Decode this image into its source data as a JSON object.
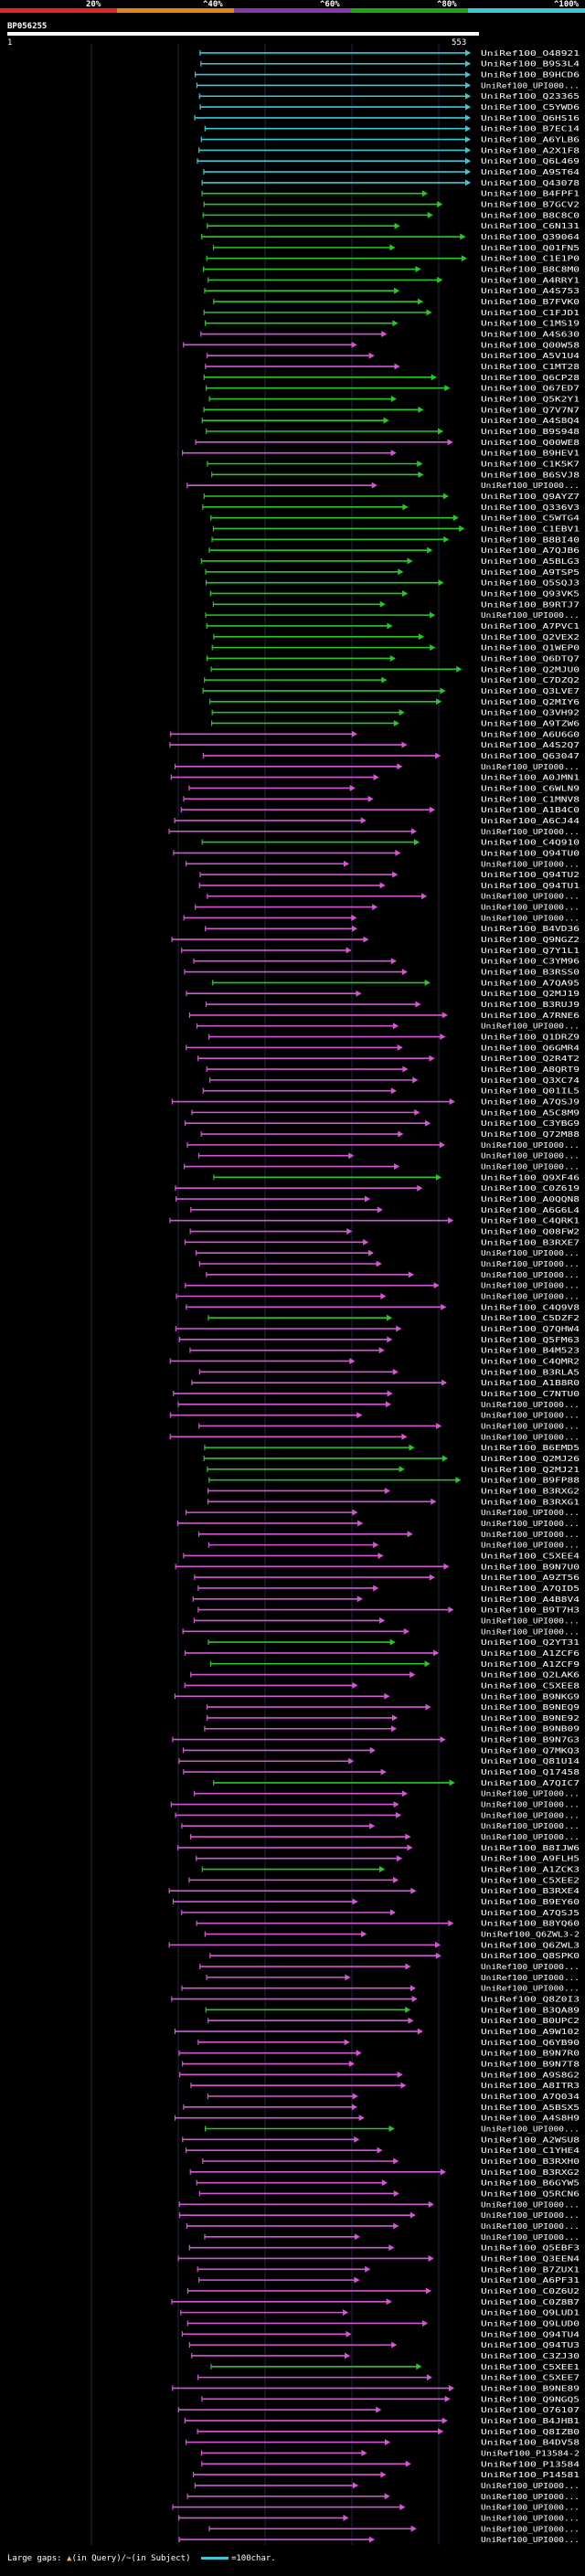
{
  "query": {
    "id": "BP056255",
    "start": "1",
    "end": "553"
  },
  "identity_scale": [
    {
      "label": "20%",
      "color": "#e8202a"
    },
    {
      "label": "^40%",
      "color": "#e8821e"
    },
    {
      "label": "^60%",
      "color": "#8a3aa8"
    },
    {
      "label": "^80%",
      "color": "#18a818"
    },
    {
      "label": "^100%",
      "color": "#3ec8d6"
    }
  ],
  "palette": {
    "cyan": "#3ec8d6",
    "green": "#28c828",
    "magenta": "#d457d4"
  },
  "hits": [
    {
      "id": "UniRef100_O48921",
      "c": "cyan"
    },
    {
      "id": "UniRef100_B9S3L4",
      "c": "cyan"
    },
    {
      "id": "UniRef100_B9HCD6",
      "c": "cyan"
    },
    {
      "id": "UniRef100_UPI000...",
      "c": "cyan"
    },
    {
      "id": "UniRef100_Q23365",
      "c": "cyan"
    },
    {
      "id": "UniRef100_C5YWD6",
      "c": "cyan"
    },
    {
      "id": "UniRef100_Q6HS16",
      "c": "cyan"
    },
    {
      "id": "UniRef100_B7EC14",
      "c": "cyan"
    },
    {
      "id": "UniRef100_A6YLB6",
      "c": "cyan"
    },
    {
      "id": "UniRef100_A2X1F8",
      "c": "cyan"
    },
    {
      "id": "UniRef100_Q6L469",
      "c": "cyan"
    },
    {
      "id": "UniRef100_A9ST64",
      "c": "cyan"
    },
    {
      "id": "UniRef100_Q43078",
      "c": "cyan"
    },
    {
      "id": "UniRef100_B4FPF1",
      "c": "green"
    },
    {
      "id": "UniRef100_B7GCV2",
      "c": "green"
    },
    {
      "id": "UniRef100_B8C8C0",
      "c": "green"
    },
    {
      "id": "UniRef100_C6N131",
      "c": "green"
    },
    {
      "id": "UniRef100_Q39064",
      "c": "green"
    },
    {
      "id": "UniRef100_Q01FN5",
      "c": "green"
    },
    {
      "id": "UniRef100_C1E1P0",
      "c": "green"
    },
    {
      "id": "UniRef100_B8C8M0",
      "c": "green"
    },
    {
      "id": "UniRef100_A4RRY1",
      "c": "green"
    },
    {
      "id": "UniRef100_A4S753",
      "c": "green"
    },
    {
      "id": "UniRef100_B7FVK0",
      "c": "green"
    },
    {
      "id": "UniRef100_C1FJD1",
      "c": "green"
    },
    {
      "id": "UniRef100_C1MS19",
      "c": "green"
    },
    {
      "id": "UniRef100_A4S630",
      "c": "magenta"
    },
    {
      "id": "UniRef100_Q00W58",
      "c": "magenta"
    },
    {
      "id": "UniRef100_A5V1U4",
      "c": "magenta"
    },
    {
      "id": "UniRef100_C1MT28",
      "c": "magenta"
    },
    {
      "id": "UniRef100_Q6CP28",
      "c": "green"
    },
    {
      "id": "UniRef100_Q67ED7",
      "c": "green"
    },
    {
      "id": "UniRef100_Q5K2Y1",
      "c": "green"
    },
    {
      "id": "UniRef100_Q7V7N7",
      "c": "green"
    },
    {
      "id": "UniRef100_A4S8Q4",
      "c": "green"
    },
    {
      "id": "UniRef100_B9S948",
      "c": "green"
    },
    {
      "id": "UniRef100_Q00WE8",
      "c": "magenta"
    },
    {
      "id": "UniRef100_B9HEV1",
      "c": "magenta"
    },
    {
      "id": "UniRef100_C1K5K7",
      "c": "green"
    },
    {
      "id": "UniRef100_B6SVJ8",
      "c": "green"
    },
    {
      "id": "UniRef100_UPI000...",
      "c": "magenta"
    },
    {
      "id": "UniRef100_Q9AYZ7",
      "c": "green"
    },
    {
      "id": "UniRef100_Q336V3",
      "c": "green"
    },
    {
      "id": "UniRef100_C5WTG4",
      "c": "green"
    },
    {
      "id": "UniRef100_C1EBV1",
      "c": "green"
    },
    {
      "id": "UniRef100_B8BI40",
      "c": "green"
    },
    {
      "id": "UniRef100_A7QJB6",
      "c": "green"
    },
    {
      "id": "UniRef100_A5BLG3",
      "c": "green"
    },
    {
      "id": "UniRef100_A9TSP5",
      "c": "green"
    },
    {
      "id": "UniRef100_Q5SQJ3",
      "c": "green"
    },
    {
      "id": "UniRef100_Q93VK5",
      "c": "green"
    },
    {
      "id": "UniRef100_B9RTJ7",
      "c": "green"
    },
    {
      "id": "UniRef100_UPI000...",
      "c": "green"
    },
    {
      "id": "UniRef100_A7PVC1",
      "c": "green"
    },
    {
      "id": "UniRef100_Q2VEX2",
      "c": "green"
    },
    {
      "id": "UniRef100_Q1WEP0",
      "c": "green"
    },
    {
      "id": "UniRef100_Q6DTQ7",
      "c": "green"
    },
    {
      "id": "UniRef100_Q2MJU0",
      "c": "green"
    },
    {
      "id": "UniRef100_C7DZQ2",
      "c": "green"
    },
    {
      "id": "UniRef100_Q3LVE7",
      "c": "green"
    },
    {
      "id": "UniRef100_Q2MIY6",
      "c": "green"
    },
    {
      "id": "UniRef100_Q3VH92",
      "c": "green"
    },
    {
      "id": "UniRef100_A9TZW6",
      "c": "green"
    },
    {
      "id": "UniRef100_A6U6G0",
      "c": "magenta"
    },
    {
      "id": "UniRef100_A4S2Q7",
      "c": "magenta"
    },
    {
      "id": "UniRef100_Q63047",
      "c": "magenta"
    },
    {
      "id": "UniRef100_UPI000...",
      "c": "magenta"
    },
    {
      "id": "UniRef100_A0JMN1",
      "c": "magenta"
    },
    {
      "id": "UniRef100_C6WLN9",
      "c": "magenta"
    },
    {
      "id": "UniRef100_C1MNV8",
      "c": "magenta"
    },
    {
      "id": "UniRef100_A1B4C0",
      "c": "magenta"
    },
    {
      "id": "UniRef100_A6CJ44",
      "c": "magenta"
    },
    {
      "id": "UniRef100_UPI000...",
      "c": "magenta"
    },
    {
      "id": "UniRef100_C4Q910",
      "c": "green"
    },
    {
      "id": "UniRef100_Q94TU0",
      "c": "magenta"
    },
    {
      "id": "UniRef100_UPI000...",
      "c": "magenta"
    },
    {
      "id": "UniRef100_Q94TU2",
      "c": "magenta"
    },
    {
      "id": "UniRef100_Q94TU1",
      "c": "magenta"
    },
    {
      "id": "UniRef100_UPI000...",
      "c": "magenta"
    },
    {
      "id": "UniRef100_UPI000...",
      "c": "magenta"
    },
    {
      "id": "UniRef100_UPI000...",
      "c": "magenta"
    },
    {
      "id": "UniRef100_B4VD36",
      "c": "magenta"
    },
    {
      "id": "UniRef100_Q9NGZ2",
      "c": "magenta"
    },
    {
      "id": "UniRef100_Q7Y1L1",
      "c": "magenta"
    },
    {
      "id": "UniRef100_C3YM96",
      "c": "magenta"
    },
    {
      "id": "UniRef100_B3RSS0",
      "c": "magenta"
    },
    {
      "id": "UniRef100_A7QA95",
      "c": "green"
    },
    {
      "id": "UniRef100_Q2MJ19",
      "c": "magenta"
    },
    {
      "id": "UniRef100_B3RUJ9",
      "c": "magenta"
    },
    {
      "id": "UniRef100_A7RNE6",
      "c": "magenta"
    },
    {
      "id": "UniRef100_UPI000...",
      "c": "magenta"
    },
    {
      "id": "UniRef100_Q1DRZ9",
      "c": "magenta"
    },
    {
      "id": "UniRef100_Q6GMR4",
      "c": "magenta"
    },
    {
      "id": "UniRef100_Q2R4T2",
      "c": "magenta"
    },
    {
      "id": "UniRef100_A8QRT9",
      "c": "magenta"
    },
    {
      "id": "UniRef100_Q3XC74",
      "c": "magenta"
    },
    {
      "id": "UniRef100_Q01IL5",
      "c": "magenta"
    },
    {
      "id": "UniRef100_A7QSJ9",
      "c": "magenta"
    },
    {
      "id": "UniRef100_A5C8M9",
      "c": "magenta"
    },
    {
      "id": "UniRef100_C3YBG9",
      "c": "magenta"
    },
    {
      "id": "UniRef100_Q72M88",
      "c": "magenta"
    },
    {
      "id": "UniRef100_UPI000...",
      "c": "magenta"
    },
    {
      "id": "UniRef100_UPI000...",
      "c": "magenta"
    },
    {
      "id": "UniRef100_UPI000...",
      "c": "magenta"
    },
    {
      "id": "UniRef100_Q9XF46",
      "c": "green"
    },
    {
      "id": "UniRef100_C0Z619",
      "c": "magenta"
    },
    {
      "id": "UniRef100_A0QQN8",
      "c": "magenta"
    },
    {
      "id": "UniRef100_A6G6L4",
      "c": "magenta"
    },
    {
      "id": "UniRef100_C4QRK1",
      "c": "magenta"
    },
    {
      "id": "UniRef100_Q08FW2",
      "c": "magenta"
    },
    {
      "id": "UniRef100_B3RXE7",
      "c": "magenta"
    },
    {
      "id": "UniRef100_UPI000...",
      "c": "magenta"
    },
    {
      "id": "UniRef100_UPI000...",
      "c": "magenta"
    },
    {
      "id": "UniRef100_UPI000...",
      "c": "magenta"
    },
    {
      "id": "UniRef100_UPI000...",
      "c": "magenta"
    },
    {
      "id": "UniRef100_UPI000...",
      "c": "magenta"
    },
    {
      "id": "UniRef100_C4Q9V8",
      "c": "magenta"
    },
    {
      "id": "UniRef100_C5DZF2",
      "c": "green"
    },
    {
      "id": "UniRef100_Q7QHW4",
      "c": "magenta"
    },
    {
      "id": "UniRef100_Q5FM63",
      "c": "magenta"
    },
    {
      "id": "UniRef100_B4M523",
      "c": "magenta"
    },
    {
      "id": "UniRef100_C4QMR2",
      "c": "magenta"
    },
    {
      "id": "UniRef100_B3RLA5",
      "c": "magenta"
    },
    {
      "id": "UniRef100_A1B8R0",
      "c": "magenta"
    },
    {
      "id": "UniRef100_C7NTU0",
      "c": "magenta"
    },
    {
      "id": "UniRef100_UPI000...",
      "c": "magenta"
    },
    {
      "id": "UniRef100_UPI000...",
      "c": "magenta"
    },
    {
      "id": "UniRef100_UPI000...",
      "c": "magenta"
    },
    {
      "id": "UniRef100_UPI000...",
      "c": "magenta"
    },
    {
      "id": "UniRef100_B6EMD5",
      "c": "green"
    },
    {
      "id": "UniRef100_Q2MJ26",
      "c": "green"
    },
    {
      "id": "UniRef100_Q2MJ21",
      "c": "green"
    },
    {
      "id": "UniRef100_B9FP88",
      "c": "green"
    },
    {
      "id": "UniRef100_B3RXG2",
      "c": "magenta"
    },
    {
      "id": "UniRef100_B3RXG1",
      "c": "magenta"
    },
    {
      "id": "UniRef100_UPI000...",
      "c": "magenta"
    },
    {
      "id": "UniRef100_UPI000...",
      "c": "magenta"
    },
    {
      "id": "UniRef100_UPI000...",
      "c": "magenta"
    },
    {
      "id": "UniRef100_UPI000...",
      "c": "magenta"
    },
    {
      "id": "UniRef100_C5XEE4",
      "c": "magenta"
    },
    {
      "id": "UniRef100_B9N7U0",
      "c": "magenta"
    },
    {
      "id": "UniRef100_A9ZT56",
      "c": "magenta"
    },
    {
      "id": "UniRef100_A7QID5",
      "c": "magenta"
    },
    {
      "id": "UniRef100_A4B8V4",
      "c": "magenta"
    },
    {
      "id": "UniRef100_B9T7H3",
      "c": "magenta"
    },
    {
      "id": "UniRef100_UPI000...",
      "c": "magenta"
    },
    {
      "id": "UniRef100_UPI000...",
      "c": "magenta"
    },
    {
      "id": "UniRef100_Q2YT31",
      "c": "green"
    },
    {
      "id": "UniRef100_A1ZCF6",
      "c": "magenta"
    },
    {
      "id": "UniRef100_A1ZCF9",
      "c": "green"
    },
    {
      "id": "UniRef100_Q2LAK6",
      "c": "magenta"
    },
    {
      "id": "UniRef100_C5XEE8",
      "c": "magenta"
    },
    {
      "id": "UniRef100_B9NKG9",
      "c": "magenta"
    },
    {
      "id": "UniRef100_B9NEQ9",
      "c": "magenta"
    },
    {
      "id": "UniRef100_B9NE92",
      "c": "magenta"
    },
    {
      "id": "UniRef100_B9NB09",
      "c": "magenta"
    },
    {
      "id": "UniRef100_B9N7G3",
      "c": "magenta"
    },
    {
      "id": "UniRef100_Q7MKQ3",
      "c": "magenta"
    },
    {
      "id": "UniRef100_Q81U14",
      "c": "magenta"
    },
    {
      "id": "UniRef100_Q17458",
      "c": "magenta"
    },
    {
      "id": "UniRef100_A7QIC7",
      "c": "green"
    },
    {
      "id": "UniRef100_UPI000...",
      "c": "magenta"
    },
    {
      "id": "UniRef100_UPI000...",
      "c": "magenta"
    },
    {
      "id": "UniRef100_UPI000...",
      "c": "magenta"
    },
    {
      "id": "UniRef100_UPI000...",
      "c": "magenta"
    },
    {
      "id": "UniRef100_UPI000...",
      "c": "magenta"
    },
    {
      "id": "UniRef100_B8IJW6",
      "c": "magenta"
    },
    {
      "id": "UniRef100_A9FLH5",
      "c": "magenta"
    },
    {
      "id": "UniRef100_A1ZCK3",
      "c": "green"
    },
    {
      "id": "UniRef100_C5XEE2",
      "c": "magenta"
    },
    {
      "id": "UniRef100_B3RXE4",
      "c": "magenta"
    },
    {
      "id": "UniRef100_B9EY60",
      "c": "magenta"
    },
    {
      "id": "UniRef100_A7QSJ5",
      "c": "magenta"
    },
    {
      "id": "UniRef100_B8YQ60",
      "c": "magenta"
    },
    {
      "id": "UniRef100_Q6ZWL3-2",
      "c": "magenta"
    },
    {
      "id": "UniRef100_Q6ZWL3",
      "c": "magenta"
    },
    {
      "id": "UniRef100_Q8SPK0",
      "c": "magenta"
    },
    {
      "id": "UniRef100_UPI000...",
      "c": "magenta"
    },
    {
      "id": "UniRef100_UPI000...",
      "c": "magenta"
    },
    {
      "id": "UniRef100_UPI000...",
      "c": "magenta"
    },
    {
      "id": "UniRef100_Q8Z0I3",
      "c": "magenta"
    },
    {
      "id": "UniRef100_B3QA89",
      "c": "green"
    },
    {
      "id": "UniRef100_B0UPC2",
      "c": "magenta"
    },
    {
      "id": "UniRef100_A9W102",
      "c": "magenta"
    },
    {
      "id": "UniRef100_Q6YB90",
      "c": "magenta"
    },
    {
      "id": "UniRef100_B9N7R0",
      "c": "magenta"
    },
    {
      "id": "UniRef100_B9N7T8",
      "c": "magenta"
    },
    {
      "id": "UniRef100_A9S8G2",
      "c": "magenta"
    },
    {
      "id": "UniRef100_A8ITR3",
      "c": "magenta"
    },
    {
      "id": "UniRef100_A7Q034",
      "c": "magenta"
    },
    {
      "id": "UniRef100_A5BSX5",
      "c": "magenta"
    },
    {
      "id": "UniRef100_A4S8H9",
      "c": "magenta"
    },
    {
      "id": "UniRef100_UPI000...",
      "c": "green"
    },
    {
      "id": "UniRef100_A2WSU8",
      "c": "magenta"
    },
    {
      "id": "UniRef100_C1YHE4",
      "c": "magenta"
    },
    {
      "id": "UniRef100_B3RXH0",
      "c": "magenta"
    },
    {
      "id": "UniRef100_B3RXG2",
      "c": "magenta"
    },
    {
      "id": "UniRef100_B6GYW5",
      "c": "magenta"
    },
    {
      "id": "UniRef100_Q5RCN6",
      "c": "magenta"
    },
    {
      "id": "UniRef100_UPI000...",
      "c": "magenta"
    },
    {
      "id": "UniRef100_UPI000...",
      "c": "magenta"
    },
    {
      "id": "UniRef100_UPI000...",
      "c": "magenta"
    },
    {
      "id": "UniRef100_UPI000...",
      "c": "magenta"
    },
    {
      "id": "UniRef100_Q5EBF3",
      "c": "magenta"
    },
    {
      "id": "UniRef100_Q3EEN4",
      "c": "magenta"
    },
    {
      "id": "UniRef100_B7ZUX1",
      "c": "magenta"
    },
    {
      "id": "UniRef100_A6PF31",
      "c": "magenta"
    },
    {
      "id": "UniRef100_C0Z6U2",
      "c": "magenta"
    },
    {
      "id": "UniRef100_C0Z8B7",
      "c": "magenta"
    },
    {
      "id": "UniRef100_Q9LUD1",
      "c": "magenta"
    },
    {
      "id": "UniRef100_Q9LUD0",
      "c": "magenta"
    },
    {
      "id": "UniRef100_Q94TU4",
      "c": "magenta"
    },
    {
      "id": "UniRef100_Q94TU3",
      "c": "magenta"
    },
    {
      "id": "UniRef100_C3ZJ30",
      "c": "magenta"
    },
    {
      "id": "UniRef100_C5XEE1",
      "c": "green"
    },
    {
      "id": "UniRef100_C5XEE7",
      "c": "magenta"
    },
    {
      "id": "UniRef100_B9NE89",
      "c": "magenta"
    },
    {
      "id": "UniRef100_Q9NGQ5",
      "c": "magenta"
    },
    {
      "id": "UniRef100_O76107",
      "c": "magenta"
    },
    {
      "id": "UniRef100_B4JHB1",
      "c": "magenta"
    },
    {
      "id": "UniRef100_Q8IZB0",
      "c": "magenta"
    },
    {
      "id": "UniRef100_B4DV58",
      "c": "magenta"
    },
    {
      "id": "UniRef100_P13584-2",
      "c": "magenta"
    },
    {
      "id": "UniRef100_P13584",
      "c": "magenta"
    },
    {
      "id": "UniRef100_P14581",
      "c": "magenta"
    },
    {
      "id": "UniRef100_UPI000...",
      "c": "magenta"
    },
    {
      "id": "UniRef100_UPI000...",
      "c": "magenta"
    },
    {
      "id": "UniRef100_UPI000...",
      "c": "magenta"
    },
    {
      "id": "UniRef100_UPI000...",
      "c": "magenta"
    },
    {
      "id": "UniRef100_UPI000...",
      "c": "magenta"
    },
    {
      "id": "UniRef100_UPI000...",
      "c": "magenta"
    }
  ],
  "footer": {
    "label": "Large gaps:",
    "query_gap_mark": "▲",
    "query_gap_text": "(in Query)/",
    "subject_gap_mark": "~",
    "subject_gap_text": "(in Subject)",
    "scale_text": "=100char."
  }
}
